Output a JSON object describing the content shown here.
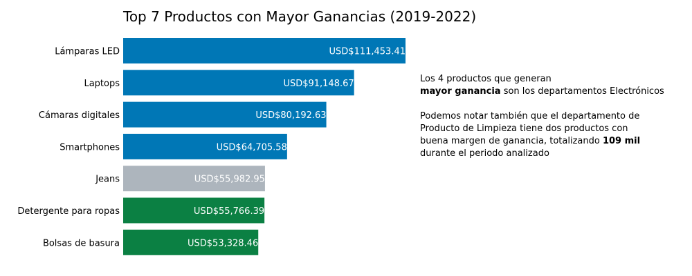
{
  "chart_data": {
    "type": "bar",
    "orientation": "horizontal",
    "title": "Top 7 Productos con Mayor Ganancias (2019-2022)",
    "xlabel": "",
    "ylabel": "",
    "categories": [
      "Lámparas LED",
      "Laptops",
      "Cámaras digitales",
      "Smartphones",
      "Jeans",
      "Detergente para ropas",
      "Bolsas de basura"
    ],
    "values": [
      111453.41,
      91148.67,
      80192.63,
      64705.58,
      55982.95,
      55766.39,
      53328.46
    ],
    "value_labels": [
      "USD$111,453.41",
      "USD$91,148.67",
      "USD$80,192.63",
      "USD$64,705.58",
      "USD$55,982.95",
      "USD$55,766.39",
      "USD$53,328.46"
    ],
    "bar_colors": [
      "#0077b6",
      "#0077b6",
      "#0077b6",
      "#0077b6",
      "#adb5bd",
      "#0b8043",
      "#0b8043"
    ],
    "xlim": [
      0,
      111453.41
    ],
    "grid": false,
    "axes_visible": false
  },
  "annotation": {
    "p1_line1": "Los 4 productos que generan",
    "p1_bold": "mayor ganancia",
    "p1_rest": " son los departamentos Electrónicos",
    "p2_line1": "Podemos notar también que el departamento de",
    "p2_line2": "Producto de Limpieza tiene dos productos con",
    "p2_line3_pre": "buena margen de ganancia, totalizando ",
    "p2_bold": "109 mil",
    "p2_line4": "durante el periodo analizado"
  }
}
